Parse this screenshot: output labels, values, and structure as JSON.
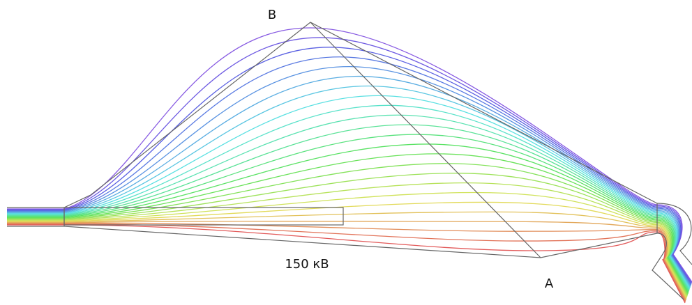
{
  "labels": {
    "top": "B",
    "voltage": "150 кВ",
    "bottom": "A"
  }
}
